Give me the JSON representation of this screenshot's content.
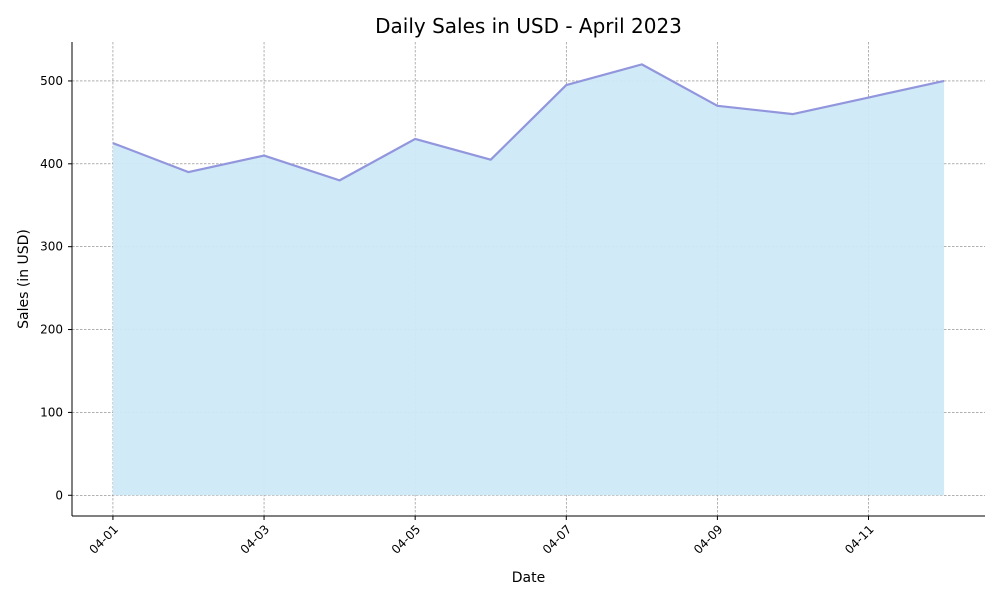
{
  "chart_data": {
    "type": "area",
    "title": "Daily Sales in USD - April 2023",
    "xlabel": "Date",
    "ylabel": "Sales (in USD)",
    "x": [
      "2023-04-01",
      "2023-04-02",
      "2023-04-03",
      "2023-04-04",
      "2023-04-05",
      "2023-04-06",
      "2023-04-07",
      "2023-04-08",
      "2023-04-09",
      "2023-04-10",
      "2023-04-11",
      "2023-04-12"
    ],
    "series": [
      {
        "values": [
          425,
          390,
          410,
          380,
          430,
          405,
          495,
          520,
          470,
          460,
          480,
          500
        ]
      }
    ],
    "x_tick_labels": [
      "04-01",
      "04-03",
      "04-05",
      "04-07",
      "04-09",
      "04-11"
    ],
    "y_ticks": [
      0,
      100,
      200,
      300,
      400,
      500
    ],
    "ylim": [
      -25,
      547
    ],
    "xlim": [
      "2023-03-31T11:00",
      "2023-04-12T13:00"
    ],
    "grid": true,
    "line_color": "#9196dd",
    "fill_color": "#cfe9f7",
    "grid_color": "#808080"
  }
}
